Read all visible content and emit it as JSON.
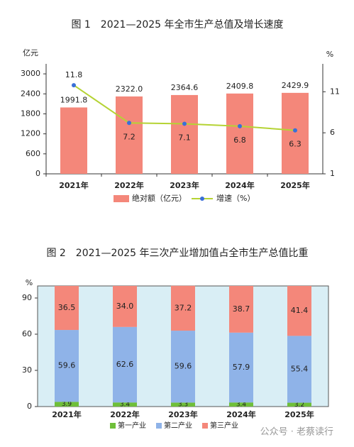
{
  "chart_data": [
    {
      "type": "bar",
      "title": "图 1　2021—2025 年全市生产总值及增长速度",
      "y_label": "亿元",
      "y2_label": "%",
      "categories": [
        "2021年",
        "2022年",
        "2023年",
        "2024年",
        "2025年"
      ],
      "series": [
        {
          "name": "绝对额（亿元）",
          "color": "#f4877a",
          "values": [
            1991.8,
            2322.0,
            2364.6,
            2409.8,
            2429.9
          ],
          "value_labels": [
            "1991.8",
            "2322.0",
            "2364.6",
            "2409.8",
            "2429.9"
          ]
        },
        {
          "name": "增速（%）",
          "type": "line",
          "axis": "y2",
          "color": "#b5d334",
          "marker_color": "#3a6fd8",
          "values": [
            11.8,
            7.2,
            7.1,
            6.8,
            6.3
          ]
        }
      ],
      "ylim": [
        0,
        3300
      ],
      "yticks": [
        0,
        600,
        1200,
        1800,
        2400,
        3000
      ],
      "y2lim": [
        1,
        14.4
      ],
      "y2ticks": [
        1,
        6,
        11
      ]
    },
    {
      "type": "stacked_bar",
      "title": "图 2　2021—2025 年三次产业增加值占全市生产总值比重",
      "y_label": "%",
      "categories": [
        "2021年",
        "2022年",
        "2023年",
        "2024年",
        "2025年"
      ],
      "series": [
        {
          "name": "第一产业",
          "color": "#6fbf3a",
          "values": [
            3.9,
            3.4,
            3.3,
            3.4,
            3.2
          ]
        },
        {
          "name": "第二产业",
          "color": "#8fb3e8",
          "values": [
            59.6,
            62.6,
            59.6,
            57.9,
            55.4
          ]
        },
        {
          "name": "第三产业",
          "color": "#f4877a",
          "values": [
            36.5,
            34.0,
            37.2,
            38.7,
            41.4
          ],
          "value_labels": [
            "36.5",
            "34.0",
            "37.2",
            "38.7",
            "41.4"
          ]
        }
      ],
      "ylim": [
        0,
        100
      ],
      "yticks": [
        0,
        30,
        60,
        90
      ],
      "background": "#d9eef5"
    }
  ],
  "watermark": "公众号 · 老蔡读行"
}
